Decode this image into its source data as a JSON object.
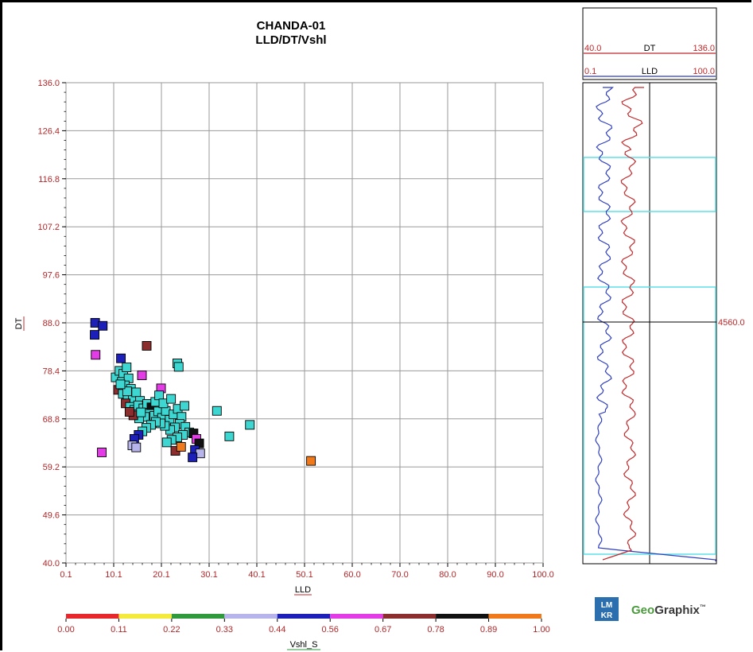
{
  "chart_data": {
    "type": "scatter",
    "title": "CHANDA-01",
    "subtitle": "LLD/DT/Vshl",
    "xlabel": "LLD",
    "ylabel": "DT",
    "xlim": [
      0.1,
      100.0
    ],
    "ylim": [
      40.0,
      136.0
    ],
    "x_ticks": [
      "0.1",
      "10.1",
      "20.1",
      "30.1",
      "40.1",
      "50.1",
      "60.0",
      "70.0",
      "80.0",
      "90.0",
      "100.0"
    ],
    "y_ticks": [
      "136.0",
      "126.4",
      "116.8",
      "107.2",
      "97.6",
      "88.0",
      "78.4",
      "68.8",
      "59.2",
      "49.6",
      "40.0"
    ],
    "grid": true,
    "color_scale": {
      "label": "Vshl_S",
      "ticks": [
        "0.00",
        "0.11",
        "0.22",
        "0.33",
        "0.44",
        "0.56",
        "0.67",
        "0.78",
        "0.89",
        "1.00"
      ],
      "colors": [
        "#e8272d",
        "#f4ea3c",
        "#2e9a3c",
        "#b7b4ec",
        "#1c1fb8",
        "#e33be6",
        "#8c2e2e",
        "#111111",
        "#f07a1b"
      ]
    },
    "points": [
      {
        "x": 6.2,
        "y": 88.0,
        "c": "#1c1fb8"
      },
      {
        "x": 7.8,
        "y": 87.4,
        "c": "#1c1fb8"
      },
      {
        "x": 6.1,
        "y": 85.6,
        "c": "#1c1fb8"
      },
      {
        "x": 6.3,
        "y": 81.6,
        "c": "#e33be6"
      },
      {
        "x": 7.6,
        "y": 62.1,
        "c": "#e33be6"
      },
      {
        "x": 17.0,
        "y": 83.4,
        "c": "#8c2e2e"
      },
      {
        "x": 11.6,
        "y": 80.9,
        "c": "#1c1fb8"
      },
      {
        "x": 23.4,
        "y": 79.9,
        "c": "#3dd6d0"
      },
      {
        "x": 16.0,
        "y": 77.5,
        "c": "#e33be6"
      },
      {
        "x": 20.0,
        "y": 74.9,
        "c": "#e33be6"
      },
      {
        "x": 10.5,
        "y": 77.1,
        "c": "#3dd6d0"
      },
      {
        "x": 11.3,
        "y": 78.4,
        "c": "#3dd6d0"
      },
      {
        "x": 12.1,
        "y": 77.8,
        "c": "#3dd6d0"
      },
      {
        "x": 12.8,
        "y": 79.1,
        "c": "#3dd6d0"
      },
      {
        "x": 11.8,
        "y": 76.2,
        "c": "#3dd6d0"
      },
      {
        "x": 13.2,
        "y": 76.9,
        "c": "#3dd6d0"
      },
      {
        "x": 12.4,
        "y": 75.5,
        "c": "#3dd6d0"
      },
      {
        "x": 13.7,
        "y": 74.8,
        "c": "#3dd6d0"
      },
      {
        "x": 11.0,
        "y": 74.6,
        "c": "#8c2e2e"
      },
      {
        "x": 12.0,
        "y": 73.8,
        "c": "#3dd6d0"
      },
      {
        "x": 13.0,
        "y": 73.2,
        "c": "#3dd6d0"
      },
      {
        "x": 14.1,
        "y": 72.9,
        "c": "#3dd6d0"
      },
      {
        "x": 14.8,
        "y": 74.1,
        "c": "#3dd6d0"
      },
      {
        "x": 15.6,
        "y": 72.4,
        "c": "#3dd6d0"
      },
      {
        "x": 12.6,
        "y": 71.9,
        "c": "#8c2e2e"
      },
      {
        "x": 13.5,
        "y": 71.2,
        "c": "#3dd6d0"
      },
      {
        "x": 14.4,
        "y": 70.6,
        "c": "#3dd6d0"
      },
      {
        "x": 15.2,
        "y": 71.5,
        "c": "#3dd6d0"
      },
      {
        "x": 16.3,
        "y": 70.9,
        "c": "#3dd6d0"
      },
      {
        "x": 17.1,
        "y": 71.8,
        "c": "#3dd6d0"
      },
      {
        "x": 18.0,
        "y": 71.1,
        "c": "#111111"
      },
      {
        "x": 18.8,
        "y": 72.2,
        "c": "#3dd6d0"
      },
      {
        "x": 19.6,
        "y": 73.5,
        "c": "#3dd6d0"
      },
      {
        "x": 17.6,
        "y": 69.8,
        "c": "#3dd6d0"
      },
      {
        "x": 16.6,
        "y": 69.2,
        "c": "#3dd6d0"
      },
      {
        "x": 15.4,
        "y": 68.9,
        "c": "#3dd6d0"
      },
      {
        "x": 14.2,
        "y": 69.5,
        "c": "#8c2e2e"
      },
      {
        "x": 13.4,
        "y": 70.2,
        "c": "#8c2e2e"
      },
      {
        "x": 18.6,
        "y": 69.4,
        "c": "#3dd6d0"
      },
      {
        "x": 19.4,
        "y": 70.3,
        "c": "#3dd6d0"
      },
      {
        "x": 20.2,
        "y": 69.0,
        "c": "#3dd6d0"
      },
      {
        "x": 21.0,
        "y": 70.4,
        "c": "#3dd6d0"
      },
      {
        "x": 21.8,
        "y": 68.6,
        "c": "#3dd6d0"
      },
      {
        "x": 22.6,
        "y": 69.7,
        "c": "#3dd6d0"
      },
      {
        "x": 23.5,
        "y": 70.8,
        "c": "#3dd6d0"
      },
      {
        "x": 24.3,
        "y": 69.2,
        "c": "#3dd6d0"
      },
      {
        "x": 24.9,
        "y": 71.4,
        "c": "#3dd6d0"
      },
      {
        "x": 23.9,
        "y": 67.8,
        "c": "#3dd6d0"
      },
      {
        "x": 22.9,
        "y": 67.1,
        "c": "#3dd6d0"
      },
      {
        "x": 21.9,
        "y": 66.6,
        "c": "#3dd6d0"
      },
      {
        "x": 20.8,
        "y": 67.4,
        "c": "#3dd6d0"
      },
      {
        "x": 19.9,
        "y": 67.9,
        "c": "#3dd6d0"
      },
      {
        "x": 18.9,
        "y": 68.2,
        "c": "#3dd6d0"
      },
      {
        "x": 17.9,
        "y": 67.6,
        "c": "#3dd6d0"
      },
      {
        "x": 16.9,
        "y": 67.0,
        "c": "#3dd6d0"
      },
      {
        "x": 16.1,
        "y": 66.3,
        "c": "#3dd6d0"
      },
      {
        "x": 15.3,
        "y": 65.6,
        "c": "#1c1fb8"
      },
      {
        "x": 14.4,
        "y": 64.8,
        "c": "#1c1fb8"
      },
      {
        "x": 14.0,
        "y": 63.5,
        "c": "#b7b4ec"
      },
      {
        "x": 14.8,
        "y": 63.1,
        "c": "#b7b4ec"
      },
      {
        "x": 25.1,
        "y": 67.2,
        "c": "#3dd6d0"
      },
      {
        "x": 25.9,
        "y": 66.1,
        "c": "#3dd6d0"
      },
      {
        "x": 24.6,
        "y": 65.6,
        "c": "#3dd6d0"
      },
      {
        "x": 23.4,
        "y": 65.1,
        "c": "#3dd6d0"
      },
      {
        "x": 22.2,
        "y": 64.6,
        "c": "#3dd6d0"
      },
      {
        "x": 21.2,
        "y": 64.1,
        "c": "#3dd6d0"
      },
      {
        "x": 23.0,
        "y": 62.4,
        "c": "#8c2e2e"
      },
      {
        "x": 24.2,
        "y": 63.2,
        "c": "#f07a1b"
      },
      {
        "x": 26.8,
        "y": 65.9,
        "c": "#111111"
      },
      {
        "x": 27.4,
        "y": 64.8,
        "c": "#e33be6"
      },
      {
        "x": 28.0,
        "y": 63.9,
        "c": "#111111"
      },
      {
        "x": 27.1,
        "y": 62.6,
        "c": "#1c1fb8"
      },
      {
        "x": 28.2,
        "y": 61.9,
        "c": "#b7b4ec"
      },
      {
        "x": 26.6,
        "y": 61.1,
        "c": "#1c1fb8"
      },
      {
        "x": 31.7,
        "y": 70.4,
        "c": "#3dd6d0"
      },
      {
        "x": 34.3,
        "y": 65.3,
        "c": "#3dd6d0"
      },
      {
        "x": 38.6,
        "y": 67.6,
        "c": "#3dd6d0"
      },
      {
        "x": 51.4,
        "y": 60.4,
        "c": "#f07a1b"
      },
      {
        "x": 23.7,
        "y": 79.2,
        "c": "#3dd6d0"
      },
      {
        "x": 15.8,
        "y": 70.1,
        "c": "#3dd6d0"
      },
      {
        "x": 20.5,
        "y": 71.9,
        "c": "#3dd6d0"
      },
      {
        "x": 22.1,
        "y": 72.8,
        "c": "#3dd6d0"
      },
      {
        "x": 12.9,
        "y": 74.3,
        "c": "#3dd6d0"
      },
      {
        "x": 11.5,
        "y": 75.7,
        "c": "#3dd6d0"
      }
    ]
  },
  "log_panel": {
    "dt_label": "DT",
    "dt_min": "40.0",
    "dt_max": "136.0",
    "lld_label": "LLD",
    "lld_min": "0.1",
    "lld_max": "100.0",
    "depth_marker": "4560.0",
    "dt_color": "#c0282a",
    "lld_color": "#2f3fbf",
    "zone_color": "#5fe0e8"
  },
  "logo": {
    "mark_top": "LM",
    "mark_bottom": "KR",
    "brand_geo": "Geo",
    "brand_graphix": "Graphix",
    "brand_mark": "™"
  }
}
